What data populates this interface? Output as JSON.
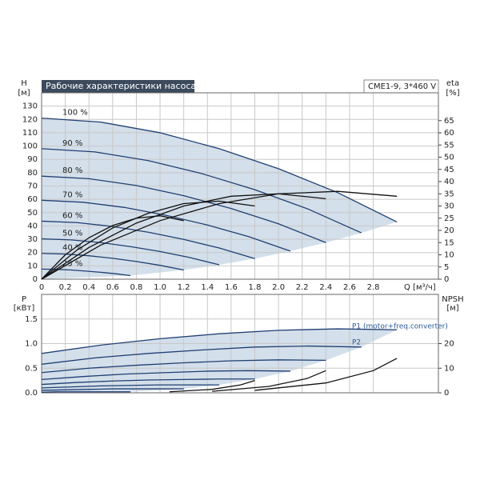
{
  "chart_data": [
    {
      "type": "line",
      "title": "Рабочие характеристики насоса",
      "model": "CME1-9, 3*460 V",
      "ylabel": "H",
      "yunit": "[м]",
      "y2label": "eta",
      "y2unit": "[%]",
      "xlabel": "Q [м³/ч]",
      "xlim": [
        0,
        3.35
      ],
      "ylim": [
        0,
        140
      ],
      "y2lim": [
        0,
        76.4
      ],
      "xticks": [
        0,
        0.2,
        0.4,
        0.6,
        0.8,
        {
          "value": 1,
          "label": "1.0"
        },
        1.2,
        1.4,
        1.6,
        1.8,
        {
          "value": 2,
          "label": "2.0"
        },
        2.2,
        2.4,
        2.6,
        2.8
      ],
      "yticks": [
        0,
        10,
        20,
        30,
        40,
        50,
        60,
        70,
        80,
        90,
        100,
        110,
        120,
        130
      ],
      "y2ticks": [
        0,
        5,
        10,
        15,
        20,
        25,
        30,
        35,
        40,
        45,
        50,
        55,
        60,
        65
      ],
      "grid": true,
      "series": [
        {
          "name": "100 %",
          "color": "#1f3f73",
          "x": [
            0,
            0.5,
            1,
            1.5,
            2,
            2.5,
            3
          ],
          "values": [
            121,
            118,
            110,
            98,
            83,
            65,
            43
          ]
        },
        {
          "name": "90 %",
          "color": "#1f3f73",
          "x": [
            0,
            0.45,
            0.9,
            1.35,
            1.8,
            2.25,
            2.7
          ],
          "values": [
            98,
            95.6,
            89.1,
            79.4,
            67.2,
            52.7,
            34.8
          ]
        },
        {
          "name": "80 %",
          "color": "#1f3f73",
          "x": [
            0,
            0.4,
            0.8,
            1.2,
            1.6,
            2.0,
            2.4
          ],
          "values": [
            77.4,
            75.5,
            70.4,
            62.7,
            53.1,
            41.6,
            27.5
          ]
        },
        {
          "name": "70 %",
          "color": "#1f3f73",
          "x": [
            0,
            0.35,
            0.7,
            1.05,
            1.4,
            1.75,
            2.1
          ],
          "values": [
            59.3,
            57.8,
            53.9,
            48.0,
            40.7,
            31.9,
            21.1
          ]
        },
        {
          "name": "60 %",
          "color": "#1f3f73",
          "x": [
            0,
            0.3,
            0.6,
            0.9,
            1.2,
            1.5,
            1.8
          ],
          "values": [
            43.6,
            42.5,
            39.6,
            35.3,
            29.9,
            23.4,
            15.5
          ]
        },
        {
          "name": "50 %",
          "color": "#1f3f73",
          "x": [
            0,
            0.25,
            0.5,
            0.75,
            1.0,
            1.25,
            1.5
          ],
          "values": [
            30.3,
            29.5,
            27.5,
            24.5,
            20.8,
            16.3,
            10.8
          ]
        },
        {
          "name": "40 %",
          "color": "#1f3f73",
          "x": [
            0,
            0.2,
            0.4,
            0.6,
            0.8,
            1.0,
            1.2
          ],
          "values": [
            19.4,
            18.9,
            17.6,
            15.7,
            13.3,
            10.4,
            6.9
          ]
        },
        {
          "name": "25 %",
          "color": "#1f3f73",
          "x": [
            0,
            0.125,
            0.25,
            0.375,
            0.5,
            0.625,
            0.75
          ],
          "values": [
            7.6,
            7.4,
            6.9,
            6.1,
            5.2,
            4.1,
            2.7
          ]
        },
        {
          "axis": "y2",
          "color": "#111111",
          "x": [
            0,
            0.5,
            1,
            1.5,
            2,
            2.5,
            3
          ],
          "values": [
            0,
            14,
            24,
            31,
            35,
            36,
            34
          ]
        },
        {
          "axis": "y2",
          "color": "#111111",
          "x": [
            0,
            0.4,
            0.8,
            1.2,
            1.6,
            2.0,
            2.4
          ],
          "values": [
            0,
            13,
            23,
            30,
            34,
            35,
            33
          ]
        },
        {
          "axis": "y2",
          "color": "#111111",
          "x": [
            0,
            0.3,
            0.6,
            0.9,
            1.2,
            1.5,
            1.8
          ],
          "values": [
            0,
            12,
            21,
            27,
            31,
            32,
            30
          ]
        },
        {
          "axis": "y2",
          "color": "#111111",
          "x": [
            0,
            0.2,
            0.4,
            0.6,
            0.8,
            1.0,
            1.2
          ],
          "values": [
            0,
            10,
            17,
            22,
            25,
            26,
            24
          ]
        }
      ]
    },
    {
      "type": "line",
      "ylabel": "P",
      "yunit": "[кВт]",
      "y2label": "NPSH",
      "y2unit": "[м]",
      "xlim": [
        0,
        3.35
      ],
      "ylim": [
        0,
        2
      ],
      "y2lim": [
        0,
        40
      ],
      "xticks": [
        0,
        0.2,
        0.4,
        0.6,
        0.8,
        1,
        1.2,
        1.4,
        1.6,
        1.8,
        2,
        2.2,
        2.4,
        2.6,
        2.8
      ],
      "yticks": [
        {
          "value": 0,
          "label": "0.0"
        },
        0.5,
        {
          "value": 1,
          "label": "1.0"
        },
        1.5
      ],
      "y2ticks": [
        0,
        10,
        20
      ],
      "grid": true,
      "annotations": [
        "P1 (motor+freq.converter)",
        "P2"
      ],
      "series": [
        {
          "color": "#1f3f73",
          "x": [
            0,
            0.5,
            1,
            1.5,
            2,
            2.5,
            3
          ],
          "values": [
            0.8,
            0.97,
            1.1,
            1.2,
            1.27,
            1.3,
            1.28
          ]
        },
        {
          "color": "#1f3f73",
          "x": [
            0,
            0.45,
            0.9,
            1.35,
            1.8,
            2.25,
            2.7
          ],
          "values": [
            0.58,
            0.71,
            0.8,
            0.87,
            0.93,
            0.95,
            0.93
          ]
        },
        {
          "color": "#1f3f73",
          "x": [
            0,
            0.4,
            0.8,
            1.2,
            1.6,
            2.0,
            2.4
          ],
          "values": [
            0.41,
            0.5,
            0.56,
            0.61,
            0.65,
            0.67,
            0.66
          ]
        },
        {
          "color": "#1f3f73",
          "x": [
            0,
            0.35,
            0.7,
            1.05,
            1.4,
            1.75,
            2.1
          ],
          "values": [
            0.27,
            0.33,
            0.38,
            0.41,
            0.44,
            0.45,
            0.44
          ]
        },
        {
          "color": "#1f3f73",
          "x": [
            0,
            0.3,
            0.6,
            0.9,
            1.2,
            1.5,
            1.8
          ],
          "values": [
            0.17,
            0.21,
            0.24,
            0.26,
            0.27,
            0.28,
            0.28
          ]
        },
        {
          "color": "#1f3f73",
          "x": [
            0,
            0.25,
            0.5,
            0.75,
            1.0,
            1.25,
            1.5
          ],
          "values": [
            0.1,
            0.12,
            0.14,
            0.15,
            0.16,
            0.16,
            0.16
          ]
        },
        {
          "color": "#1f3f73",
          "x": [
            0,
            0.2,
            0.4,
            0.6,
            0.8,
            1.0,
            1.2
          ],
          "values": [
            0.05,
            0.06,
            0.07,
            0.08,
            0.08,
            0.08,
            0.08
          ]
        },
        {
          "color": "#1f3f73",
          "x": [
            0,
            0.125,
            0.25,
            0.375,
            0.5,
            0.625,
            0.75
          ],
          "values": [
            0.01,
            0.02,
            0.02,
            0.02,
            0.02,
            0.02,
            0.02
          ]
        },
        {
          "axis": "y2",
          "color": "#111111",
          "x": [
            1.8,
            2.4,
            2.8,
            3.0
          ],
          "values": [
            1,
            4,
            9,
            14
          ]
        },
        {
          "axis": "y2",
          "color": "#111111",
          "x": [
            1.44,
            1.92,
            2.24,
            2.4
          ],
          "values": [
            0.6,
            2.6,
            5.8,
            9
          ]
        },
        {
          "axis": "y2",
          "color": "#111111",
          "x": [
            1.08,
            1.44,
            1.68,
            1.8
          ],
          "values": [
            0.4,
            1.4,
            3.2,
            5
          ]
        }
      ]
    }
  ]
}
